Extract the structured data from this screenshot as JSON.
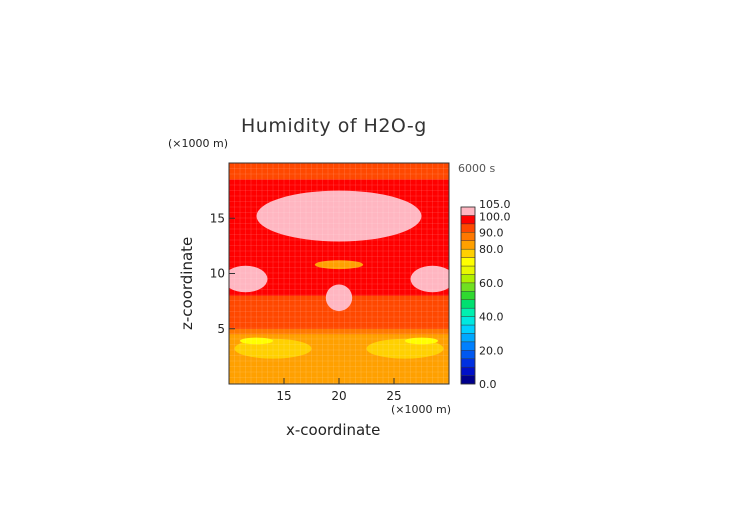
{
  "chart_data": {
    "type": "heatmap",
    "title": "Humidity of H2O-g",
    "time_label": "6000 s",
    "xlabel": "x-coordinate",
    "ylabel": "z-coordinate",
    "x_unit": "(×1000 m)",
    "y_unit": "(×1000 m)",
    "xlim": [
      10,
      30
    ],
    "ylim": [
      0,
      20
    ],
    "xticks": [
      15,
      20,
      25
    ],
    "yticks": [
      5,
      10,
      15
    ],
    "colorbar": {
      "labels": [
        "0.0",
        "20.0",
        "40.0",
        "60.0",
        "80.0",
        "90.0",
        "100.0",
        "105.0"
      ],
      "label_values": [
        0,
        20,
        40,
        60,
        80,
        90,
        100,
        105
      ],
      "levels": [
        0,
        5,
        10,
        15,
        20,
        25,
        30,
        35,
        40,
        45,
        50,
        55,
        60,
        65,
        70,
        75,
        80,
        85,
        90,
        95,
        100,
        105
      ],
      "colors": [
        "#00008c",
        "#0010c8",
        "#0030e0",
        "#0058f0",
        "#0080ff",
        "#00a8ff",
        "#00d0ff",
        "#00e8e0",
        "#00f0b0",
        "#00e070",
        "#30d830",
        "#70e020",
        "#b0f000",
        "#e8f800",
        "#ffff00",
        "#ffd000",
        "#ffa000",
        "#ff7800",
        "#ff4800",
        "#ff0000",
        "#ffb6c1"
      ]
    },
    "regions": [
      {
        "level": 95,
        "shape": "band",
        "z_range": [
          0,
          20
        ]
      },
      {
        "level": 90,
        "shape": "band",
        "z_range": [
          18.5,
          20
        ]
      },
      {
        "level": 90,
        "shape": "band",
        "z_range": [
          5,
          8
        ]
      },
      {
        "level": 85,
        "shape": "band",
        "z_range": [
          0,
          5
        ]
      },
      {
        "level": 80,
        "shape": "band",
        "z_range": [
          0,
          4.5
        ]
      },
      {
        "level": 100,
        "shape": "ellipse",
        "cx": 20,
        "cz": 15.2,
        "rx": 7.5,
        "rz": 2.3
      },
      {
        "level": 100,
        "shape": "ellipse",
        "cx": 20,
        "cz": 7.8,
        "rx": 1.2,
        "rz": 1.2
      },
      {
        "level": 100,
        "shape": "ellipse",
        "cx": 11.5,
        "cz": 9.5,
        "rx": 2,
        "rz": 1.2
      },
      {
        "level": 100,
        "shape": "ellipse",
        "cx": 28.5,
        "cz": 9.5,
        "rx": 2,
        "rz": 1.2
      },
      {
        "level": 75,
        "shape": "ellipse",
        "cx": 14,
        "cz": 3.2,
        "rx": 3.5,
        "rz": 0.9
      },
      {
        "level": 75,
        "shape": "ellipse",
        "cx": 26,
        "cz": 3.2,
        "rx": 3.5,
        "rz": 0.9
      },
      {
        "level": 70,
        "shape": "ellipse",
        "cx": 12.5,
        "cz": 3.9,
        "rx": 1.5,
        "rz": 0.3
      },
      {
        "level": 70,
        "shape": "ellipse",
        "cx": 27.5,
        "cz": 3.9,
        "rx": 1.5,
        "rz": 0.3
      },
      {
        "level": 80,
        "shape": "ellipse",
        "cx": 20,
        "cz": 10.8,
        "rx": 2.2,
        "rz": 0.4
      }
    ]
  }
}
